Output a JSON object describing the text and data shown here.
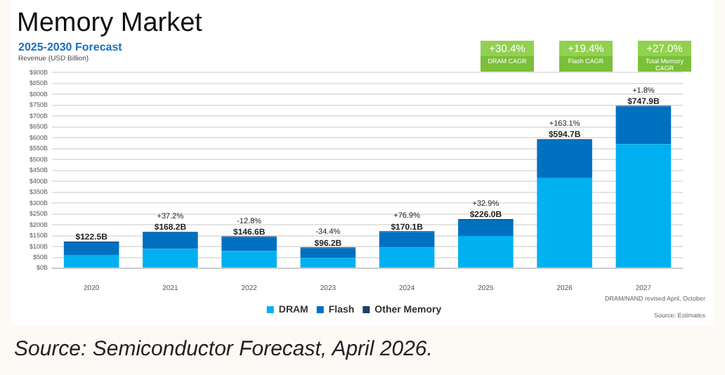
{
  "chart_data": {
    "type": "bar",
    "title": "Memory Market",
    "subtitle": "2025-2030 Forecast",
    "ylabel": "Revenue (USD Billion)",
    "categories": [
      "2020",
      "2021",
      "2022",
      "2023",
      "2024",
      "2025",
      "2026",
      "2027"
    ],
    "stacked": true,
    "series": [
      {
        "name": "DRAM",
        "color": "#00b0f0",
        "values": [
          61,
          89,
          79,
          48,
          95,
          149,
          417,
          571
        ]
      },
      {
        "name": "Flash",
        "color": "#0070c0",
        "values": [
          58.5,
          76.2,
          64.6,
          45,
          72.1,
          74,
          174.7,
          173.9
        ]
      },
      {
        "name": "Other Memory",
        "color": "#1f3a6e",
        "values": [
          3,
          3,
          3,
          3.2,
          3,
          3,
          3,
          3
        ]
      }
    ],
    "totals": [
      "$122.5B",
      "$168.2B",
      "$146.6B",
      "$96.2B",
      "$170.1B",
      "$226.0B",
      "$594.7B",
      "$747.9B"
    ],
    "ylim": [
      0,
      900
    ],
    "yticks": [
      {
        "value": 0,
        "label": "$0B"
      },
      {
        "value": 50,
        "label": "$50B"
      },
      {
        "value": 100,
        "label": "$100B"
      },
      {
        "value": 150,
        "label": "$150B"
      },
      {
        "value": 200,
        "label": "$200B"
      },
      {
        "value": 250,
        "label": "$250B"
      },
      {
        "value": 300,
        "label": "$300B"
      },
      {
        "value": 350,
        "label": "$350B"
      },
      {
        "value": 400,
        "label": "$400B"
      },
      {
        "value": 450,
        "label": "$450B"
      },
      {
        "value": 500,
        "label": "$500B"
      },
      {
        "value": 550,
        "label": "$550B"
      },
      {
        "value": 600,
        "label": "$600B"
      },
      {
        "value": 650,
        "label": "$650B"
      },
      {
        "value": 700,
        "label": "$700B"
      },
      {
        "value": 750,
        "label": "$750B"
      },
      {
        "value": 800,
        "label": "$800B"
      },
      {
        "value": 850,
        "label": "$850B"
      },
      {
        "value": 900,
        "label": "$900B"
      }
    ],
    "grid": "y",
    "legend": "bottom",
    "annotations": [
      {
        "text": "+37.2%",
        "x": "2021",
        "y": 168.2
      },
      {
        "text": "-12.8%",
        "x": "2022",
        "y": 146.6
      },
      {
        "text": "-34.4%",
        "x": "2023",
        "y": 96.2
      },
      {
        "text": "+76.9%",
        "x": "2024",
        "y": 170.1
      },
      {
        "text": "+32.9%",
        "x": "2025",
        "y": 226.0
      },
      {
        "text": "+163.1%",
        "x": "2026",
        "y": 594.7
      },
      {
        "text": "+1.8%",
        "x": "2027",
        "y": 747.9
      },
      "+30.4%",
      "DRAM CAGR",
      "+19.4%",
      "Flash CAGR",
      "+27.0%",
      "Total Memory CAGR",
      "DRAM/NAND revised April, October",
      "Source: Estimates",
      "Source: Semiconductor Forecast, April 2026."
    ]
  }
}
